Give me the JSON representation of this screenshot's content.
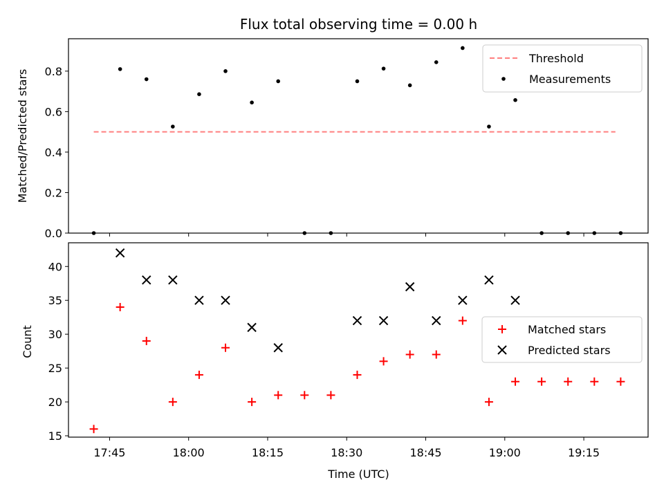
{
  "chart_data": [
    {
      "type": "scatter",
      "title": "Flux total observing time = 0.00 h",
      "xlabel": "",
      "ylabel": "Matched/Predicted stars",
      "ylim": [
        0,
        0.96
      ],
      "yticks": [
        "0.0",
        "0.2",
        "0.4",
        "0.6",
        "0.8"
      ],
      "legend_position": "top-right",
      "threshold": {
        "name": "Threshold",
        "value": 0.5,
        "x_start": "17:42",
        "x_end": "19:21",
        "color": "#ff7f7f"
      },
      "series": [
        {
          "name": "Measurements",
          "color": "#000000",
          "marker": "dot",
          "x": [
            "17:42",
            "17:47",
            "17:52",
            "17:57",
            "18:02",
            "18:07",
            "18:12",
            "18:17",
            "18:22",
            "18:27",
            "18:32",
            "18:37",
            "18:42",
            "18:47",
            "18:52",
            "18:57",
            "19:02",
            "19:07",
            "19:12",
            "19:17",
            "19:22"
          ],
          "y": [
            0.0,
            0.81,
            0.76,
            0.526,
            0.686,
            0.8,
            0.645,
            0.75,
            0.0,
            0.0,
            0.75,
            0.8125,
            0.73,
            0.844,
            0.914,
            0.526,
            0.657,
            0.0,
            0.0,
            0.0,
            0.0
          ]
        }
      ]
    },
    {
      "type": "scatter",
      "title": "",
      "xlabel": "Time (UTC)",
      "ylabel": "Count",
      "ylim": [
        14.8,
        43.5
      ],
      "yticks": [
        "15",
        "20",
        "25",
        "30",
        "35",
        "40"
      ],
      "xticks": [
        "17:45",
        "18:00",
        "18:15",
        "18:30",
        "18:45",
        "19:00",
        "19:15"
      ],
      "legend_position": "center-right",
      "series": [
        {
          "name": "Matched stars",
          "color": "#ff0000",
          "marker": "plus",
          "x": [
            "17:42",
            "17:47",
            "17:52",
            "17:57",
            "18:02",
            "18:07",
            "18:12",
            "18:17",
            "18:22",
            "18:27",
            "18:32",
            "18:37",
            "18:42",
            "18:47",
            "18:52",
            "18:57",
            "19:02",
            "19:07",
            "19:12",
            "19:17",
            "19:22"
          ],
          "y": [
            16,
            34,
            29,
            20,
            24,
            28,
            20,
            21,
            21,
            21,
            24,
            26,
            27,
            27,
            32,
            20,
            23,
            23,
            23,
            23,
            23
          ]
        },
        {
          "name": "Predicted stars",
          "color": "#000000",
          "marker": "x",
          "x": [
            "17:47",
            "17:52",
            "17:57",
            "18:02",
            "18:07",
            "18:12",
            "18:17",
            "18:32",
            "18:37",
            "18:42",
            "18:47",
            "18:52",
            "18:57",
            "19:02"
          ],
          "y": [
            42,
            38,
            38,
            35,
            35,
            31,
            28,
            32,
            32,
            37,
            32,
            35,
            38,
            35
          ]
        }
      ]
    }
  ]
}
